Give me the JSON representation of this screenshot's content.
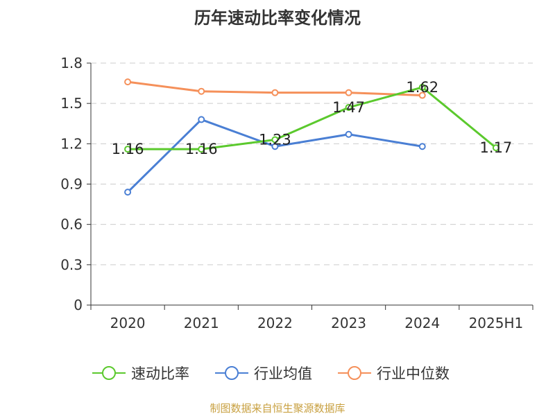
{
  "chart_data": {
    "type": "line",
    "title": "历年速动比率变化情况",
    "categories": [
      "2020",
      "2021",
      "2022",
      "2023",
      "2024",
      "2025H1"
    ],
    "ylim": [
      0,
      1.8
    ],
    "yticks": [
      0,
      0.3,
      0.6,
      0.9,
      1.2,
      1.5,
      1.8
    ],
    "ytick_labels": [
      "0",
      "0.3",
      "0.6",
      "0.9",
      "1.2",
      "1.5",
      "1.8"
    ],
    "grid": true,
    "legend_position": "bottom",
    "series": [
      {
        "name": "速动比率",
        "color": "#5bc92d",
        "values": [
          1.16,
          1.16,
          1.23,
          1.47,
          1.62,
          1.17
        ],
        "data_labels": [
          "1.16",
          "1.16",
          "1.23",
          "1.47",
          "1.62",
          "1.17"
        ]
      },
      {
        "name": "行业均值",
        "color": "#4a7fd4",
        "values": [
          0.84,
          1.38,
          1.18,
          1.27,
          1.18,
          null
        ]
      },
      {
        "name": "行业中位数",
        "color": "#f5905a",
        "values": [
          1.66,
          1.59,
          1.58,
          1.58,
          1.56,
          null
        ]
      }
    ]
  },
  "footer": {
    "source": "制图数据来自恒生聚源数据库"
  }
}
